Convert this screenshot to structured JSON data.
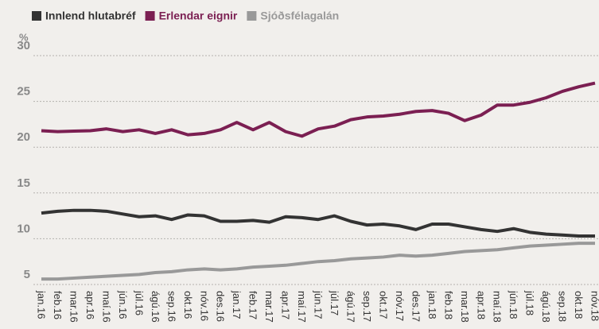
{
  "chart_data": {
    "type": "line",
    "y_label": "%",
    "categories": [
      "jan.16",
      "feb.16",
      "mar.16",
      "apr.16",
      "maí.16",
      "jún.16",
      "júl.16",
      "ágú.16",
      "sep.16",
      "okt.16",
      "nóv.16",
      "des.16",
      "jan.17",
      "feb.17",
      "mar.17",
      "apr.17",
      "maí.17",
      "jún.17",
      "júl.17",
      "ágú.17",
      "sep.17",
      "okt.17",
      "nóv.17",
      "des.17",
      "jan.18",
      "feb.18",
      "mar.18",
      "apr.18",
      "maí.18",
      "jún.18",
      "júl.18",
      "ágú.18",
      "sep.18",
      "okt.18",
      "nóv.18"
    ],
    "series": [
      {
        "name": "Innlend hlutabréf",
        "color": "#333333",
        "values": [
          12.8,
          13.0,
          13.1,
          13.1,
          13.0,
          12.7,
          12.4,
          12.5,
          12.1,
          12.6,
          12.5,
          11.9,
          11.9,
          12.0,
          11.8,
          12.4,
          12.3,
          12.1,
          12.5,
          11.9,
          11.5,
          11.6,
          11.4,
          11.0,
          11.6,
          11.6,
          11.3,
          11.0,
          10.8,
          11.1,
          10.7,
          10.5,
          10.4,
          10.3,
          10.3
        ]
      },
      {
        "name": "Erlendar eignir",
        "color": "#7b1f52",
        "values": [
          21.8,
          21.7,
          21.75,
          21.8,
          22.0,
          21.7,
          21.9,
          21.5,
          21.9,
          21.35,
          21.5,
          21.9,
          22.7,
          21.9,
          22.7,
          21.7,
          21.2,
          22.0,
          22.3,
          23.0,
          23.3,
          23.4,
          23.6,
          23.9,
          24.0,
          23.7,
          22.9,
          23.5,
          24.6,
          24.6,
          24.9,
          25.4,
          26.1,
          26.6,
          27.0
        ]
      },
      {
        "name": "Sjóðsfélagalán",
        "color": "#999999",
        "values": [
          5.6,
          5.6,
          5.7,
          5.8,
          5.9,
          6.0,
          6.1,
          6.3,
          6.4,
          6.6,
          6.7,
          6.6,
          6.7,
          6.9,
          7.0,
          7.1,
          7.3,
          7.5,
          7.6,
          7.8,
          7.9,
          8.0,
          8.2,
          8.1,
          8.2,
          8.4,
          8.6,
          8.7,
          8.8,
          9.0,
          9.2,
          9.3,
          9.4,
          9.5,
          9.5
        ]
      }
    ],
    "ylim": [
      5,
      30
    ],
    "yticks": [
      5,
      10,
      15,
      20,
      25,
      30
    ],
    "grid": true
  }
}
